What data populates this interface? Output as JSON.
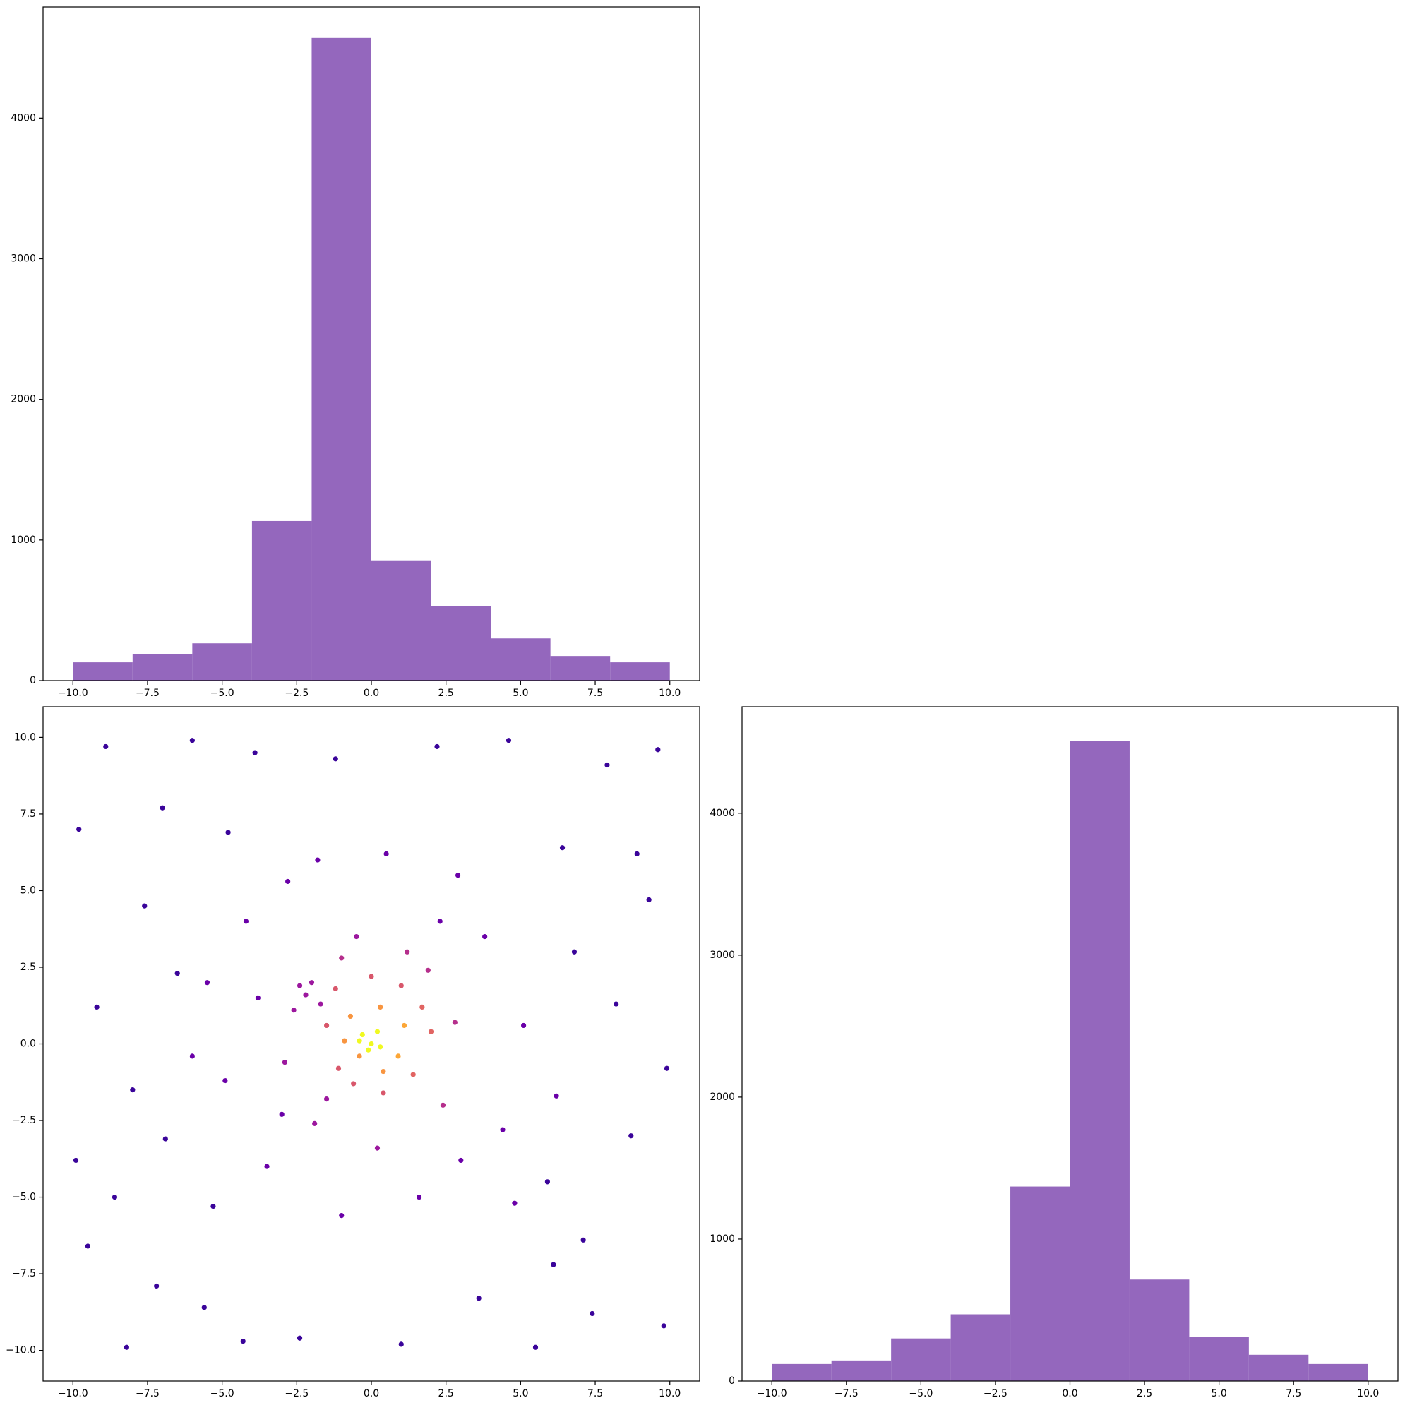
{
  "chart_data": [
    {
      "type": "histogram",
      "color": "#9467bd",
      "bins": [
        -10,
        -8,
        -6,
        -4,
        -2,
        0,
        2,
        4,
        6,
        8,
        10
      ],
      "counts": [
        130,
        190,
        265,
        1135,
        4570,
        855,
        530,
        300,
        175,
        130
      ],
      "xlim": [
        -11,
        11
      ],
      "ylim": [
        0,
        4790
      ],
      "xticks": [
        {
          "value": -10,
          "label": "−10.0"
        },
        {
          "value": -7.5,
          "label": "−7.5"
        },
        {
          "value": -5,
          "label": "−5.0"
        },
        {
          "value": -2.5,
          "label": "−2.5"
        },
        {
          "value": 0,
          "label": "0.0"
        },
        {
          "value": 2.5,
          "label": "2.5"
        },
        {
          "value": 5,
          "label": "5.0"
        },
        {
          "value": 7.5,
          "label": "7.5"
        },
        {
          "value": 10,
          "label": "10.0"
        }
      ],
      "yticks": [
        0,
        1000,
        2000,
        3000,
        4000
      ]
    },
    {
      "type": "scatter",
      "x": [
        -9.8,
        -9.5,
        -8.9,
        -8.2,
        -7.6,
        -6.9,
        -6.0,
        -5.6,
        -4.8,
        -4.3,
        -9.2,
        -8.0,
        -7.2,
        -6.5,
        -5.3,
        4.6,
        5.5,
        6.4,
        7.1,
        7.9,
        8.7,
        9.3,
        9.8,
        8.2,
        7.4,
        6.8,
        5.9,
        9.6,
        9.9,
        -9.9,
        -3.9,
        -2.4,
        2.2,
        1.0,
        3.6,
        -1.2,
        8.9,
        -8.6,
        6.1,
        -7.0,
        -4.2,
        -3.5,
        3.8,
        4.4,
        -2.8,
        2.9,
        -4.9,
        5.1,
        -1.0,
        1.6,
        -5.5,
        4.8,
        -3.0,
        3.0,
        0.5,
        -1.8,
        -6.0,
        6.2,
        2.3,
        -3.8,
        -2.2,
        -2.6,
        -2.0,
        -1.7,
        -2.4,
        -1.0,
        1.9,
        -1.9,
        2.4,
        0.2,
        -2.9,
        2.8,
        -0.5,
        1.2,
        -1.5,
        -1.2,
        0.0,
        1.0,
        -1.5,
        -1.1,
        1.4,
        0.4,
        2.0,
        -0.6,
        1.7,
        -0.7,
        0.3,
        -0.9,
        0.9,
        0.4,
        -0.4,
        1.1,
        -0.3,
        0.0,
        0.2,
        -0.1,
        0.3,
        -0.4
      ],
      "y": [
        7.0,
        -6.6,
        9.7,
        -9.9,
        4.5,
        -3.1,
        9.9,
        -8.6,
        6.9,
        -9.7,
        1.2,
        -1.5,
        -7.9,
        2.3,
        -5.3,
        9.9,
        -9.9,
        6.4,
        -6.4,
        9.1,
        -3.0,
        4.7,
        -9.2,
        1.3,
        -8.8,
        3.0,
        -4.5,
        9.6,
        -0.8,
        -3.8,
        9.5,
        -9.6,
        9.7,
        -9.8,
        -8.3,
        9.3,
        6.2,
        -5.0,
        -7.2,
        7.7,
        4.0,
        -4.0,
        3.5,
        -2.8,
        5.3,
        5.5,
        -1.2,
        0.6,
        -5.6,
        -5.0,
        2.0,
        -5.2,
        -2.3,
        -3.8,
        6.2,
        6.0,
        -0.4,
        -1.7,
        4.0,
        1.5,
        1.6,
        1.1,
        2.0,
        1.3,
        1.9,
        2.8,
        2.4,
        -2.6,
        -2.0,
        -3.4,
        -0.6,
        0.7,
        3.5,
        3.0,
        -1.8,
        1.8,
        2.2,
        1.9,
        0.6,
        -0.8,
        -1.0,
        -1.6,
        0.4,
        -1.3,
        1.2,
        0.9,
        1.2,
        0.1,
        -0.4,
        -0.9,
        -0.4,
        0.6,
        0.3,
        0.0,
        0.4,
        -0.2,
        -0.1,
        0.1
      ],
      "colors": [
        "#3a049a",
        "#3a049a",
        "#3a049a",
        "#3a049a",
        "#3a049a",
        "#3a049a",
        "#3a049a",
        "#3a049a",
        "#3a049a",
        "#3a049a",
        "#3a049a",
        "#3a049a",
        "#3a049a",
        "#3a049a",
        "#3a049a",
        "#3a049a",
        "#3a049a",
        "#3a049a",
        "#3a049a",
        "#3a049a",
        "#3a049a",
        "#3a049a",
        "#3a049a",
        "#3a049a",
        "#3a049a",
        "#3a049a",
        "#3a049a",
        "#3a049a",
        "#3a049a",
        "#3a049a",
        "#3a049a",
        "#3a049a",
        "#3a049a",
        "#3a049a",
        "#3a049a",
        "#3a049a",
        "#3a049a",
        "#3a049a",
        "#3a049a",
        "#3a049a",
        "#6a00a8",
        "#6a00a8",
        "#6a00a8",
        "#6a00a8",
        "#6a00a8",
        "#6a00a8",
        "#6a00a8",
        "#6a00a8",
        "#6a00a8",
        "#6a00a8",
        "#6a00a8",
        "#6a00a8",
        "#6a00a8",
        "#6a00a8",
        "#6a00a8",
        "#6a00a8",
        "#6a00a8",
        "#6a00a8",
        "#6a00a8",
        "#6a00a8",
        "#9c179e",
        "#9c179e",
        "#9c179e",
        "#9c179e",
        "#9c179e",
        "#b52f8c",
        "#b52f8c",
        "#9c179e",
        "#b52f8c",
        "#9c179e",
        "#9c179e",
        "#b52f8c",
        "#9c179e",
        "#b52f8c",
        "#9c179e",
        "#d8576b",
        "#d8576b",
        "#d8576b",
        "#d8576b",
        "#d8576b",
        "#e16462",
        "#d8576b",
        "#e16462",
        "#d8576b",
        "#e16462",
        "#f89540",
        "#f89540",
        "#f89540",
        "#fca636",
        "#f89540",
        "#f89540",
        "#fca636",
        "#f0f921",
        "#f0f921",
        "#f0f921",
        "#f0f921",
        "#f0f921",
        "#f0f921"
      ],
      "xlim": [
        -11,
        11
      ],
      "ylim": [
        -11,
        11
      ],
      "xticks": [
        {
          "value": -10,
          "label": "−10.0"
        },
        {
          "value": -7.5,
          "label": "−7.5"
        },
        {
          "value": -5,
          "label": "−5.0"
        },
        {
          "value": -2.5,
          "label": "−2.5"
        },
        {
          "value": 0,
          "label": "0.0"
        },
        {
          "value": 2.5,
          "label": "2.5"
        },
        {
          "value": 5,
          "label": "5.0"
        },
        {
          "value": 7.5,
          "label": "7.5"
        },
        {
          "value": 10,
          "label": "10.0"
        }
      ],
      "yticks": [
        {
          "value": -10,
          "label": "−10.0"
        },
        {
          "value": -7.5,
          "label": "−7.5"
        },
        {
          "value": -5,
          "label": "−5.0"
        },
        {
          "value": -2.5,
          "label": "−2.5"
        },
        {
          "value": 0,
          "label": "0.0"
        },
        {
          "value": 2.5,
          "label": "2.5"
        },
        {
          "value": 5,
          "label": "5.0"
        },
        {
          "value": 7.5,
          "label": "7.5"
        },
        {
          "value": 10,
          "label": "10.0"
        }
      ]
    },
    {
      "type": "histogram",
      "color": "#9467bd",
      "bins": [
        -10,
        -8,
        -6,
        -4,
        -2,
        0,
        2,
        4,
        6,
        8,
        10
      ],
      "counts": [
        120,
        145,
        300,
        470,
        1370,
        4510,
        715,
        310,
        185,
        120
      ],
      "xlim": [
        -11,
        11
      ],
      "ylim": [
        0,
        4750
      ],
      "xticks": [
        {
          "value": -10,
          "label": "−10.0"
        },
        {
          "value": -7.5,
          "label": "−7.5"
        },
        {
          "value": -5,
          "label": "−5.0"
        },
        {
          "value": -2.5,
          "label": "−2.5"
        },
        {
          "value": 0,
          "label": "0.0"
        },
        {
          "value": 2.5,
          "label": "2.5"
        },
        {
          "value": 5,
          "label": "5.0"
        },
        {
          "value": 7.5,
          "label": "7.5"
        },
        {
          "value": 10,
          "label": "10.0"
        }
      ],
      "yticks": [
        0,
        1000,
        2000,
        3000,
        4000
      ]
    }
  ]
}
